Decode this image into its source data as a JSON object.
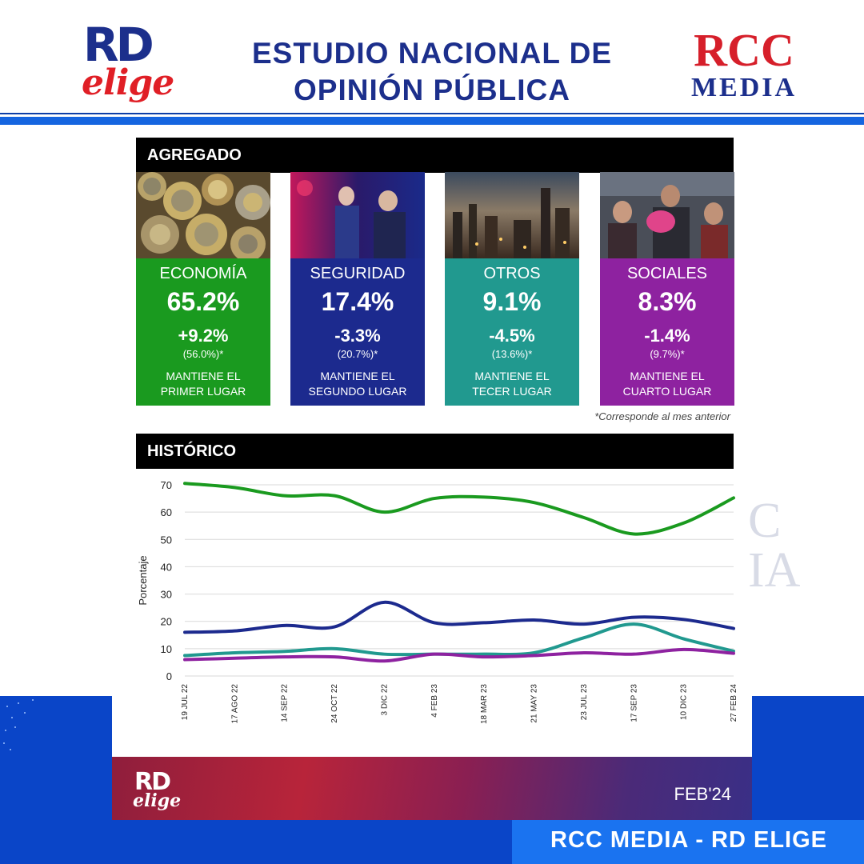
{
  "header": {
    "logo_left_rd": "RD",
    "logo_left_elige": "elige",
    "title_line1": "ESTUDIO NACIONAL DE",
    "title_line2": "OPINIÓN PÚBLICA",
    "logo_right_rcc": "RCC",
    "logo_right_media": "MEDIA"
  },
  "sections": {
    "agregado": "AGREGADO",
    "historico": "HISTÓRICO"
  },
  "tiles": [
    {
      "category": "ECONOMÍA",
      "percent": "65.2%",
      "change": "+9.2%",
      "previous": "(56.0%)*",
      "note_line1": "MANTIENE EL",
      "note_line2": "PRIMER LUGAR",
      "color": "#1a9a1f",
      "photo": "coins-photo"
    },
    {
      "category": "SEGURIDAD",
      "percent": "17.4%",
      "change": "-3.3%",
      "previous": "(20.7%)*",
      "note_line1": "MANTIENE EL",
      "note_line2": "SEGUNDO LUGAR",
      "color": "#1c2a8e",
      "photo": "police-photo"
    },
    {
      "category": "OTROS",
      "percent": "9.1%",
      "change": "-4.5%",
      "previous": "(13.6%)*",
      "note_line1": "MANTIENE EL",
      "note_line2": "TECER LUGAR",
      "color": "#21998f",
      "photo": "city-photo"
    },
    {
      "category": "SOCIALES",
      "percent": "8.3%",
      "change": "-1.4%",
      "previous": "(9.7%)*",
      "note_line1": "MANTIENE EL",
      "note_line2": "CUARTO LUGAR",
      "color": "#8e22a0",
      "photo": "people-photo"
    }
  ],
  "footnote": "*Corresponde al mes anterior",
  "chart_data": {
    "type": "line",
    "ylabel": "Porcentaje",
    "xlabel": "",
    "ylim": [
      0,
      70
    ],
    "yticks": [
      0,
      10,
      20,
      30,
      40,
      50,
      60,
      70
    ],
    "grid": true,
    "categories": [
      "19 JUL 22",
      "17 AGO 22",
      "14 SEP 22",
      "24 OCT 22",
      "3 DIC 22",
      "4 FEB 23",
      "18 MAR 23",
      "21 MAY 23",
      "23 JUL 23",
      "17 SEP 23",
      "10 DIC 23",
      "27 FEB 24"
    ],
    "series": [
      {
        "key": "economia",
        "color": "#1a9a1f",
        "values": [
          70.5,
          69,
          66,
          66,
          60,
          65,
          65.5,
          63.5,
          58,
          52,
          56,
          65.2
        ]
      },
      {
        "key": "seguridad",
        "color": "#1c2a8e",
        "values": [
          16,
          16.5,
          18.5,
          18,
          27,
          19.5,
          19.5,
          20.5,
          19,
          21.5,
          20.7,
          17.4
        ]
      },
      {
        "key": "otros",
        "color": "#21998f",
        "values": [
          7.5,
          8.5,
          9,
          10,
          8,
          8,
          8,
          8.5,
          14,
          19,
          13.6,
          9.1
        ]
      },
      {
        "key": "sociales",
        "color": "#8e22a0",
        "values": [
          6,
          6.5,
          7,
          7,
          5.5,
          8,
          7,
          7.5,
          8.5,
          8,
          9.7,
          8.3
        ]
      }
    ]
  },
  "card_footer": {
    "rd": "RD",
    "elige": "elige",
    "date": "FEB'24"
  },
  "footer": {
    "text": "RCC MEDIA - RD ELIGE"
  },
  "watermark": {
    "line1": "C",
    "line2": "IA"
  }
}
